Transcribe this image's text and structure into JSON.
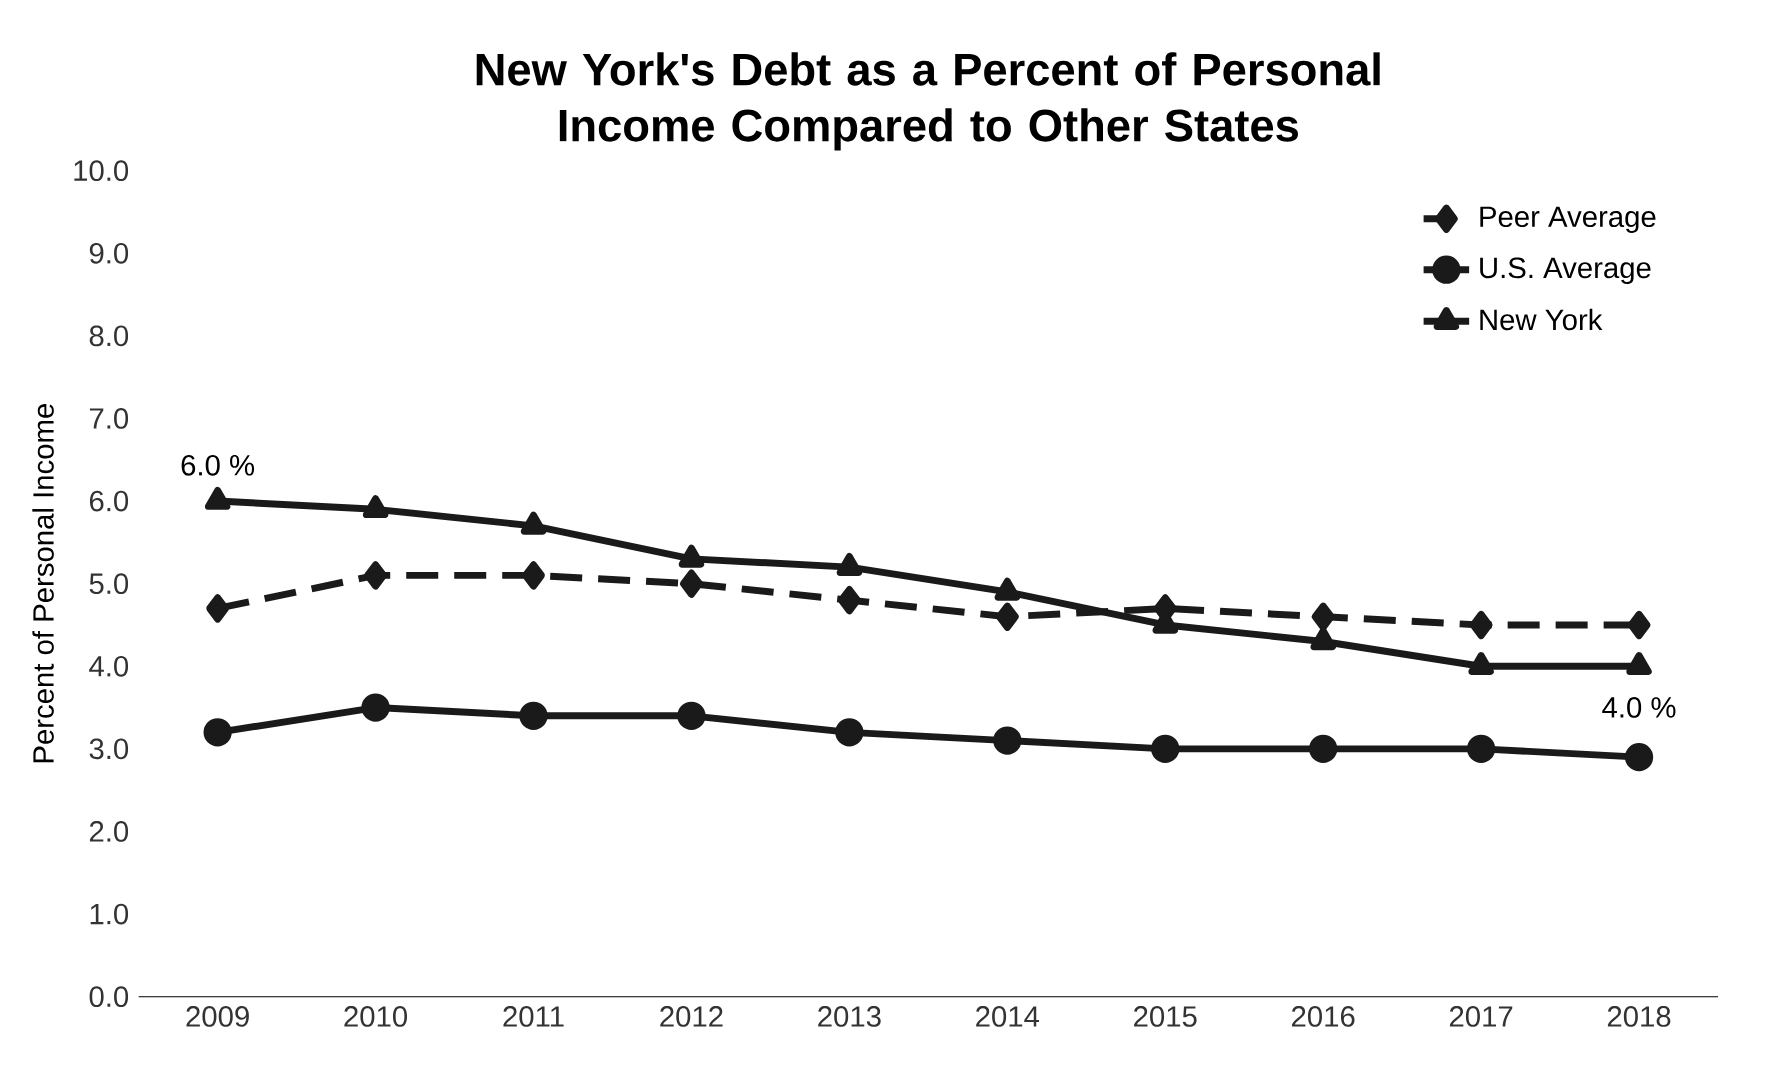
{
  "chart_data": {
    "type": "line",
    "title": "New York's Debt as a Percent of Personal Income Compared to Other States",
    "ylabel": "Percent of Personal Income",
    "categories": [
      "2009",
      "2010",
      "2011",
      "2012",
      "2013",
      "2014",
      "2015",
      "2016",
      "2017",
      "2018"
    ],
    "series": [
      {
        "name": "Peer Average",
        "color": "#1a1a1a",
        "marker": "diamond",
        "line_style": "dashed",
        "values": [
          4.7,
          5.1,
          5.1,
          5.0,
          4.8,
          4.6,
          4.7,
          4.6,
          4.5,
          4.5
        ]
      },
      {
        "name": "U.S. Average",
        "color": "#1a1a1a",
        "marker": "circle",
        "line_style": "solid",
        "values": [
          3.2,
          3.5,
          3.4,
          3.4,
          3.2,
          3.1,
          3.0,
          3.0,
          3.0,
          2.9
        ]
      },
      {
        "name": "New York",
        "color": "#1a1a1a",
        "marker": "triangle",
        "line_style": "solid",
        "values": [
          6.0,
          5.9,
          5.7,
          5.3,
          5.2,
          4.9,
          4.5,
          4.3,
          4.0,
          4.0
        ]
      }
    ],
    "ylim": [
      0,
      10
    ],
    "yticks": [
      {
        "value": 0,
        "label": "0.0"
      },
      {
        "value": 1,
        "label": "1.0"
      },
      {
        "value": 2,
        "label": "2.0"
      },
      {
        "value": 3,
        "label": "3.0"
      },
      {
        "value": 4,
        "label": "4.0"
      },
      {
        "value": 5,
        "label": "5.0"
      },
      {
        "value": 6,
        "label": "6.0"
      },
      {
        "value": 7,
        "label": "7.0"
      },
      {
        "value": 8,
        "label": "8.0"
      },
      {
        "value": 9,
        "label": "9.0"
      },
      {
        "value": 10,
        "label": "10.0"
      }
    ],
    "grid": false,
    "legend": "top right",
    "annotations": [
      {
        "text": "6.0 %",
        "x": "2009",
        "y": 6.0
      },
      {
        "text": "4.0 %",
        "x": "2018",
        "y": 4.0
      }
    ]
  }
}
